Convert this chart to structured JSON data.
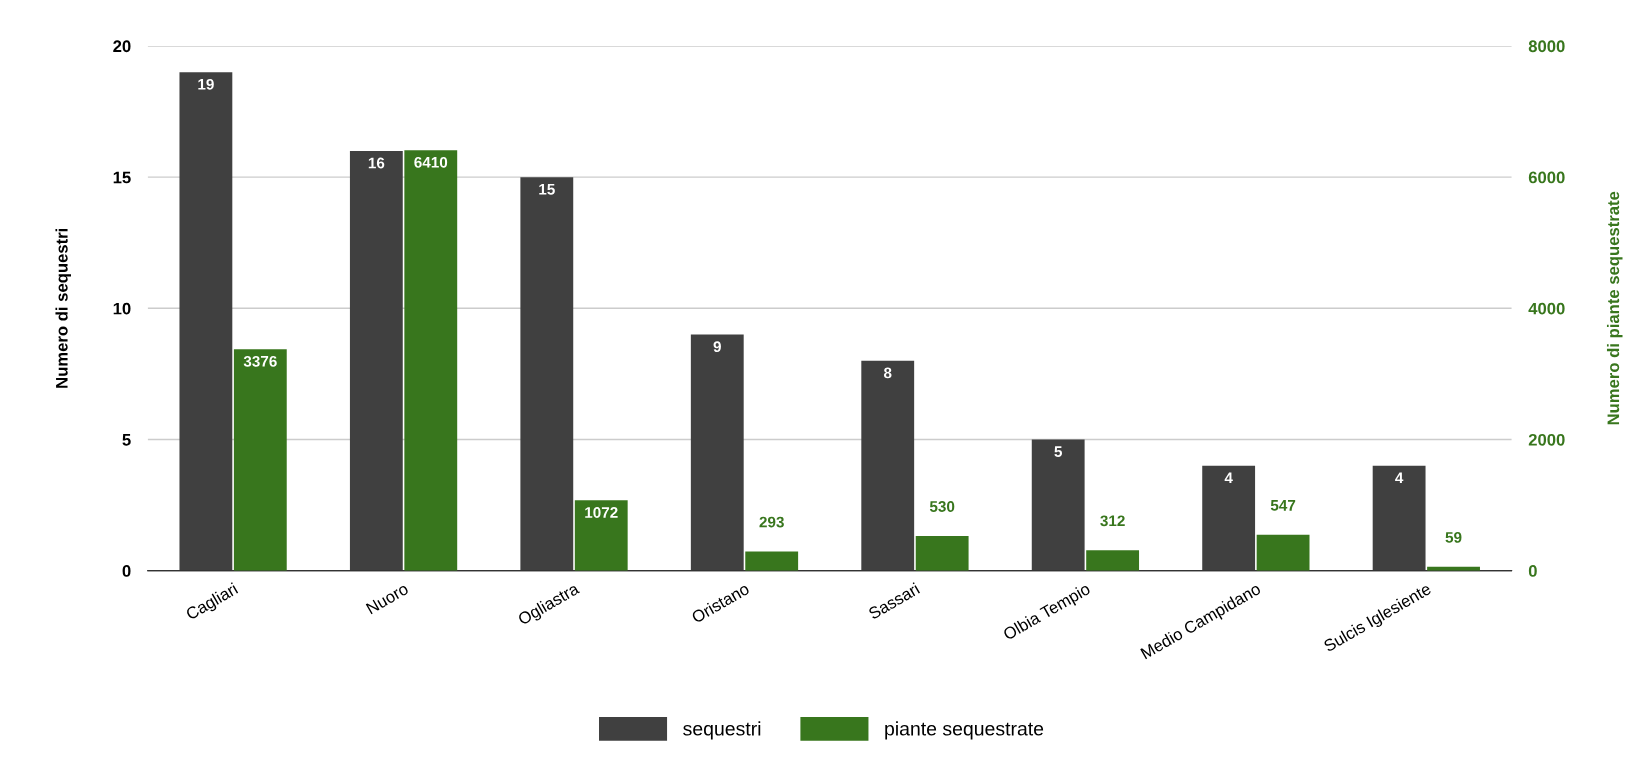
{
  "chart_data": {
    "type": "bar",
    "categories": [
      "Cagliari",
      "Nuoro",
      "Ogliastra",
      "Oristano",
      "Sassari",
      "Olbia Tempio",
      "Medio Campidano",
      "Sulcis Iglesiente"
    ],
    "series": [
      {
        "name": "sequestri",
        "color": "#404040",
        "values": [
          19,
          16,
          15,
          9,
          8,
          5,
          4,
          4
        ]
      },
      {
        "name": "piante sequestrate",
        "color": "#38761d",
        "axis": "y2",
        "values": [
          3376,
          6410,
          1072,
          293,
          530,
          312,
          547,
          59
        ]
      }
    ],
    "ylabel": "Numero di sequestri",
    "y2label": "Numero di piante sequestrate",
    "ylim": [
      0,
      20
    ],
    "yticks": [
      0,
      5,
      10,
      15,
      20
    ],
    "y2lim": [
      0,
      8000
    ],
    "y2ticks": [
      0,
      2000,
      4000,
      6000,
      8000
    ],
    "grid": "y",
    "legend": "bottom",
    "data_labels": true
  }
}
